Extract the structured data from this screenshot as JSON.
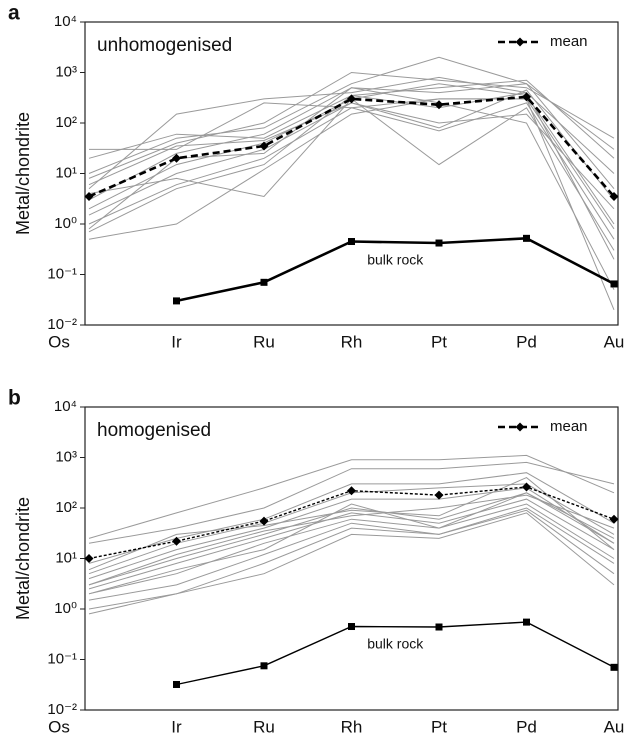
{
  "chart_data": [
    {
      "type": "line",
      "panel": "a",
      "title": "unhomogenised",
      "ylabel": "Metal/chondrite",
      "categories": [
        "Os",
        "Ir",
        "Ru",
        "Rh",
        "Pt",
        "Pd",
        "Au"
      ],
      "log": true,
      "ylim": [
        0.01,
        10000
      ],
      "yticks": [
        {
          "value": 0.01,
          "label": "10⁻²"
        },
        {
          "value": 0.1,
          "label": "10⁻¹"
        },
        {
          "value": 1,
          "label": "10⁰"
        },
        {
          "value": 10,
          "label": "10¹"
        },
        {
          "value": 100,
          "label": "10²"
        },
        {
          "value": 1000,
          "label": "10³"
        },
        {
          "value": 10000,
          "label": "10⁴"
        }
      ],
      "legend": "top-right",
      "series": [
        {
          "color": "#9a9a9a",
          "values": [
            10,
            50,
            80,
            600,
            2000,
            600,
            30
          ]
        },
        {
          "color": "#9a9a9a",
          "values": [
            8,
            40,
            100,
            1000,
            700,
            500,
            50
          ]
        },
        {
          "color": "#9a9a9a",
          "values": [
            5,
            150,
            300,
            400,
            800,
            400,
            10
          ]
        },
        {
          "color": "#9a9a9a",
          "values": [
            30,
            30,
            250,
            200,
            300,
            300,
            0.8
          ]
        },
        {
          "color": "#9a9a9a",
          "values": [
            3,
            25,
            60,
            500,
            400,
            600,
            5
          ]
        },
        {
          "color": "#9a9a9a",
          "values": [
            2,
            15,
            40,
            300,
            15,
            200,
            0.3
          ]
        },
        {
          "color": "#9a9a9a",
          "values": [
            1.5,
            10,
            30,
            250,
            100,
            150,
            2
          ]
        },
        {
          "color": "#9a9a9a",
          "values": [
            1,
            6,
            20,
            200,
            70,
            250,
            0.5
          ]
        },
        {
          "color": "#9a9a9a",
          "values": [
            0.7,
            5,
            15,
            350,
            200,
            400,
            0.2
          ]
        },
        {
          "color": "#9a9a9a",
          "values": [
            0.5,
            1,
            12,
            150,
            300,
            300,
            0.02
          ]
        },
        {
          "color": "#9a9a9a",
          "values": [
            20,
            60,
            50,
            350,
            500,
            700,
            20
          ]
        },
        {
          "color": "#9a9a9a",
          "values": [
            4,
            8,
            3.5,
            300,
            600,
            350,
            1
          ]
        },
        {
          "color": "#9a9a9a",
          "values": [
            0.8,
            20,
            25,
            500,
            250,
            100,
            0.05
          ]
        },
        {
          "color": "#9a9a9a",
          "values": [
            6,
            35,
            45,
            250,
            80,
            450,
            3
          ]
        },
        {
          "name": "mean",
          "color": "#000000",
          "dashed": true,
          "marker": "diamond",
          "values": [
            3.5,
            20,
            35,
            300,
            230,
            330,
            3.5
          ]
        },
        {
          "label": "bulk rock",
          "color": "#000000",
          "marker": "square",
          "values": [
            null,
            0.03,
            0.07,
            0.45,
            0.42,
            0.52,
            0.065
          ]
        }
      ]
    },
    {
      "type": "line",
      "panel": "b",
      "title": "homogenised",
      "ylabel": "Metal/chondrite",
      "categories": [
        "Os",
        "Ir",
        "Ru",
        "Rh",
        "Pt",
        "Pd",
        "Au"
      ],
      "log": true,
      "ylim": [
        0.01,
        10000
      ],
      "yticks": [
        {
          "value": 0.01,
          "label": "10⁻²"
        },
        {
          "value": 0.1,
          "label": "10⁻¹"
        },
        {
          "value": 1,
          "label": "10⁰"
        },
        {
          "value": 10,
          "label": "10¹"
        },
        {
          "value": 100,
          "label": "10²"
        },
        {
          "value": 1000,
          "label": "10³"
        },
        {
          "value": 10000,
          "label": "10⁴"
        }
      ],
      "legend": "top-right",
      "series": [
        {
          "color": "#9a9a9a",
          "values": [
            25,
            80,
            250,
            900,
            900,
            1100,
            200
          ]
        },
        {
          "color": "#9a9a9a",
          "values": [
            20,
            40,
            100,
            600,
            600,
            800,
            300
          ]
        },
        {
          "color": "#9a9a9a",
          "values": [
            8,
            25,
            60,
            300,
            300,
            500,
            50
          ]
        },
        {
          "color": "#9a9a9a",
          "values": [
            5,
            20,
            50,
            200,
            250,
            300,
            30
          ]
        },
        {
          "color": "#9a9a9a",
          "values": [
            4,
            15,
            40,
            150,
            150,
            250,
            20
          ]
        },
        {
          "color": "#9a9a9a",
          "values": [
            3,
            10,
            30,
            100,
            60,
            200,
            25
          ]
        },
        {
          "color": "#9a9a9a",
          "values": [
            2.5,
            8,
            25,
            80,
            50,
            150,
            15
          ]
        },
        {
          "color": "#9a9a9a",
          "values": [
            2,
            5,
            20,
            60,
            40,
            120,
            10
          ]
        },
        {
          "color": "#9a9a9a",
          "values": [
            1.5,
            3,
            12,
            50,
            30,
            100,
            8
          ]
        },
        {
          "color": "#9a9a9a",
          "values": [
            1,
            2,
            8,
            40,
            30,
            90,
            5
          ]
        },
        {
          "color": "#9a9a9a",
          "values": [
            0.8,
            2,
            5,
            30,
            25,
            80,
            3
          ]
        },
        {
          "color": "#9a9a9a",
          "values": [
            3,
            12,
            35,
            70,
            100,
            180,
            40
          ]
        },
        {
          "color": "#9a9a9a",
          "values": [
            6,
            30,
            45,
            90,
            70,
            400,
            15
          ]
        },
        {
          "color": "#9a9a9a",
          "values": [
            2,
            6,
            15,
            120,
            40,
            200,
            20
          ]
        },
        {
          "name": "mean",
          "color": "#000000",
          "dashed": true,
          "marker": "diamond",
          "values": [
            10,
            22,
            55,
            220,
            180,
            260,
            60
          ]
        },
        {
          "label": "bulk rock",
          "color": "#000000",
          "marker": "square",
          "values": [
            null,
            0.032,
            0.075,
            0.45,
            0.44,
            0.55,
            0.07
          ]
        }
      ]
    }
  ]
}
